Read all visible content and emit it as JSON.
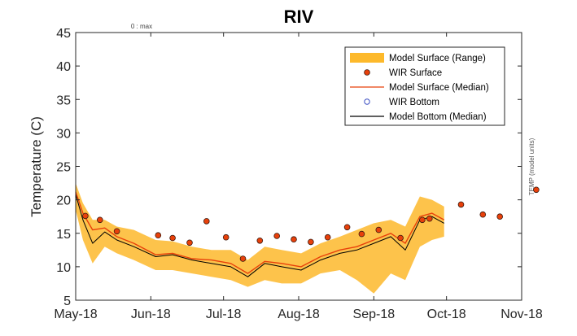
{
  "chart_data": {
    "type": "line",
    "title": "RIV",
    "ylabel": "Temperature (C)",
    "xlabel": "",
    "annotation_top": "0 : max",
    "right_axis_label": "TEMP (model units)",
    "x_ticks": [
      "May-18",
      "Jun-18",
      "Jul-18",
      "Aug-18",
      "Sep-18",
      "Oct-18",
      "Nov-18"
    ],
    "x_range": [
      "2018-05-01",
      "2018-11-01"
    ],
    "ylim": [
      5,
      45
    ],
    "y_ticks": [
      "5",
      "10",
      "15",
      "20",
      "25",
      "30",
      "35",
      "40",
      "45"
    ],
    "grid": false,
    "legend_position": "top-right",
    "legend": [
      "Model Surface (Range)",
      "WIR Surface",
      "Model Surface (Median)",
      "WIR Bottom",
      "Model Bottom (Median)"
    ],
    "colors": {
      "range": "#fdb92b",
      "surface_median": "#e8400a",
      "wir_surface_fill": "#e8400a",
      "wir_surface_edge": "#3a1a10",
      "wir_bottom": "#3b4ec2",
      "bottom_median": "#000000"
    },
    "wir_surface": [
      {
        "date": "2018-05-05",
        "value": 17.6
      },
      {
        "date": "2018-05-11",
        "value": 17.0
      },
      {
        "date": "2018-05-18",
        "value": 15.3
      },
      {
        "date": "2018-06-04",
        "value": 14.7
      },
      {
        "date": "2018-06-10",
        "value": 14.3
      },
      {
        "date": "2018-06-17",
        "value": 13.6
      },
      {
        "date": "2018-06-24",
        "value": 16.8
      },
      {
        "date": "2018-07-02",
        "value": 14.4
      },
      {
        "date": "2018-07-09",
        "value": 11.2
      },
      {
        "date": "2018-07-16",
        "value": 13.9
      },
      {
        "date": "2018-07-23",
        "value": 14.6
      },
      {
        "date": "2018-07-30",
        "value": 14.1
      },
      {
        "date": "2018-08-06",
        "value": 13.7
      },
      {
        "date": "2018-08-13",
        "value": 14.4
      },
      {
        "date": "2018-08-21",
        "value": 15.9
      },
      {
        "date": "2018-08-27",
        "value": 14.9
      },
      {
        "date": "2018-09-03",
        "value": 15.5
      },
      {
        "date": "2018-09-12",
        "value": 14.3
      },
      {
        "date": "2018-09-21",
        "value": 17.0
      },
      {
        "date": "2018-09-24",
        "value": 17.2
      },
      {
        "date": "2018-10-07",
        "value": 19.3
      },
      {
        "date": "2018-10-16",
        "value": 17.8
      },
      {
        "date": "2018-10-23",
        "value": 17.5
      },
      {
        "date": "2018-11-07",
        "value": 21.5
      }
    ],
    "model_surface_median": [
      {
        "date": "2018-05-01",
        "value": 21.2
      },
      {
        "date": "2018-05-04",
        "value": 18.0
      },
      {
        "date": "2018-05-08",
        "value": 15.5
      },
      {
        "date": "2018-05-13",
        "value": 15.8
      },
      {
        "date": "2018-05-18",
        "value": 14.5
      },
      {
        "date": "2018-05-25",
        "value": 13.5
      },
      {
        "date": "2018-06-03",
        "value": 11.8
      },
      {
        "date": "2018-06-10",
        "value": 12.0
      },
      {
        "date": "2018-06-18",
        "value": 11.2
      },
      {
        "date": "2018-06-26",
        "value": 11.0
      },
      {
        "date": "2018-07-04",
        "value": 10.5
      },
      {
        "date": "2018-07-11",
        "value": 9.0
      },
      {
        "date": "2018-07-18",
        "value": 10.8
      },
      {
        "date": "2018-07-25",
        "value": 10.5
      },
      {
        "date": "2018-08-02",
        "value": 10.0
      },
      {
        "date": "2018-08-10",
        "value": 11.5
      },
      {
        "date": "2018-08-18",
        "value": 12.5
      },
      {
        "date": "2018-08-25",
        "value": 13.0
      },
      {
        "date": "2018-09-01",
        "value": 14.0
      },
      {
        "date": "2018-09-08",
        "value": 15.0
      },
      {
        "date": "2018-09-14",
        "value": 13.5
      },
      {
        "date": "2018-09-20",
        "value": 17.5
      },
      {
        "date": "2018-09-25",
        "value": 18.0
      },
      {
        "date": "2018-09-30",
        "value": 17.0
      }
    ],
    "model_bottom_median": [
      {
        "date": "2018-05-01",
        "value": 20.8
      },
      {
        "date": "2018-05-04",
        "value": 17.0
      },
      {
        "date": "2018-05-08",
        "value": 13.5
      },
      {
        "date": "2018-05-13",
        "value": 15.2
      },
      {
        "date": "2018-05-18",
        "value": 14.0
      },
      {
        "date": "2018-05-25",
        "value": 13.0
      },
      {
        "date": "2018-06-03",
        "value": 11.5
      },
      {
        "date": "2018-06-10",
        "value": 11.8
      },
      {
        "date": "2018-06-18",
        "value": 11.0
      },
      {
        "date": "2018-06-26",
        "value": 10.5
      },
      {
        "date": "2018-07-04",
        "value": 10.0
      },
      {
        "date": "2018-07-11",
        "value": 8.5
      },
      {
        "date": "2018-07-18",
        "value": 10.5
      },
      {
        "date": "2018-07-25",
        "value": 10.0
      },
      {
        "date": "2018-08-02",
        "value": 9.5
      },
      {
        "date": "2018-08-10",
        "value": 11.0
      },
      {
        "date": "2018-08-18",
        "value": 12.0
      },
      {
        "date": "2018-08-25",
        "value": 12.5
      },
      {
        "date": "2018-09-01",
        "value": 13.5
      },
      {
        "date": "2018-09-08",
        "value": 14.5
      },
      {
        "date": "2018-09-14",
        "value": 12.5
      },
      {
        "date": "2018-09-20",
        "value": 17.0
      },
      {
        "date": "2018-09-25",
        "value": 17.5
      },
      {
        "date": "2018-09-30",
        "value": 16.5
      }
    ],
    "model_surface_range": [
      {
        "date": "2018-05-01",
        "low": 18.5,
        "high": 22.5
      },
      {
        "date": "2018-05-04",
        "low": 14.0,
        "high": 19.5
      },
      {
        "date": "2018-05-08",
        "low": 10.5,
        "high": 17.0
      },
      {
        "date": "2018-05-13",
        "low": 13.0,
        "high": 17.0
      },
      {
        "date": "2018-05-18",
        "low": 12.0,
        "high": 16.0
      },
      {
        "date": "2018-05-25",
        "low": 11.0,
        "high": 15.5
      },
      {
        "date": "2018-06-03",
        "low": 9.5,
        "high": 14.0
      },
      {
        "date": "2018-06-10",
        "low": 9.5,
        "high": 13.8
      },
      {
        "date": "2018-06-18",
        "low": 9.0,
        "high": 13.0
      },
      {
        "date": "2018-06-26",
        "low": 8.5,
        "high": 12.5
      },
      {
        "date": "2018-07-04",
        "low": 8.0,
        "high": 12.5
      },
      {
        "date": "2018-07-11",
        "low": 7.0,
        "high": 11.0
      },
      {
        "date": "2018-07-18",
        "low": 8.0,
        "high": 13.0
      },
      {
        "date": "2018-07-25",
        "low": 7.5,
        "high": 12.5
      },
      {
        "date": "2018-08-02",
        "low": 7.5,
        "high": 12.0
      },
      {
        "date": "2018-08-10",
        "low": 9.0,
        "high": 13.5
      },
      {
        "date": "2018-08-18",
        "low": 9.5,
        "high": 14.5
      },
      {
        "date": "2018-08-25",
        "low": 8.0,
        "high": 15.5
      },
      {
        "date": "2018-09-01",
        "low": 6.0,
        "high": 16.5
      },
      {
        "date": "2018-09-08",
        "low": 9.0,
        "high": 17.0
      },
      {
        "date": "2018-09-14",
        "low": 8.0,
        "high": 16.0
      },
      {
        "date": "2018-09-20",
        "low": 13.0,
        "high": 20.5
      },
      {
        "date": "2018-09-25",
        "low": 14.0,
        "high": 20.0
      },
      {
        "date": "2018-09-30",
        "low": 14.5,
        "high": 19.0
      }
    ]
  }
}
